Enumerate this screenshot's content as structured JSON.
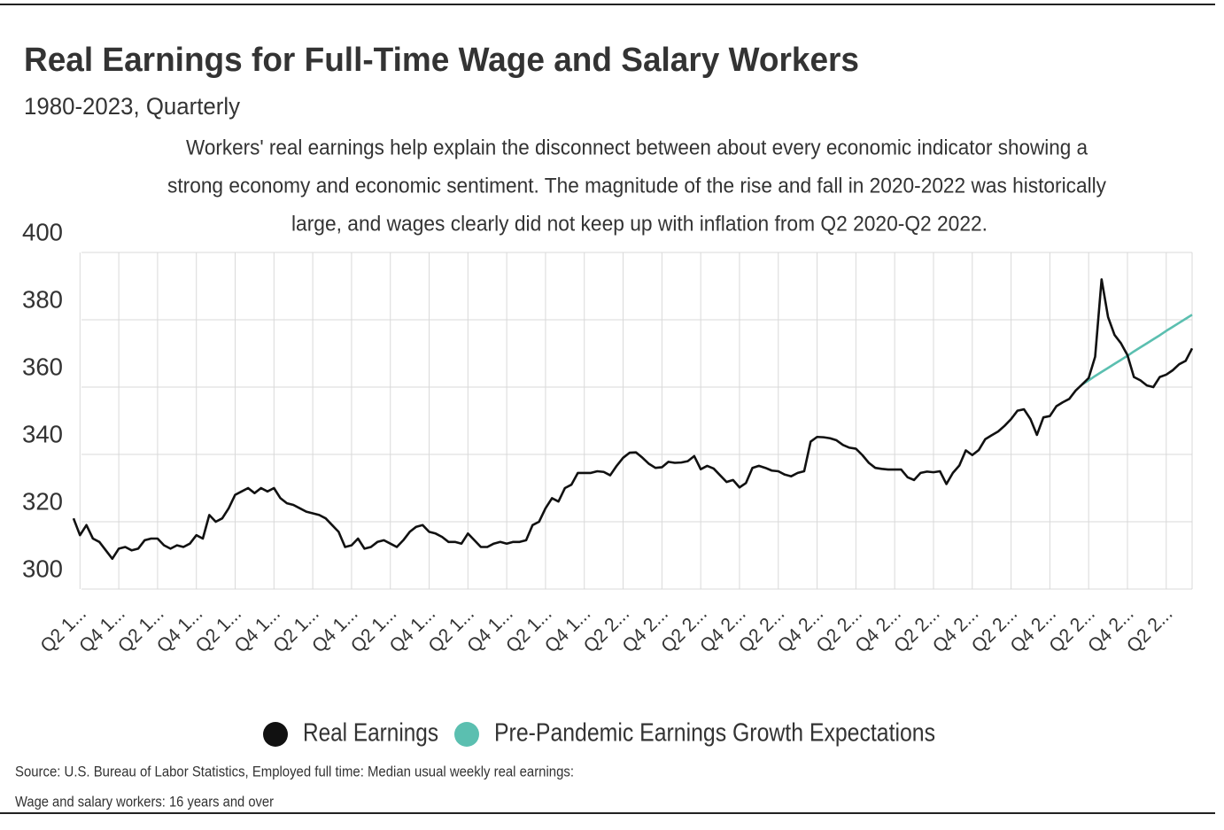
{
  "chart_data": {
    "type": "line",
    "title": "Real Earnings for Full-Time Wage and Salary Workers",
    "subtitle": "1980-2023, Quarterly",
    "annotation": [
      "Workers' real earnings help explain the disconnect between about every economic indicator showing a",
      "strong economy and economic sentiment. The magnitude of the rise and fall in 2020-2022 was historically",
      "large, and wages clearly did not keep up with inflation from Q2 2020-Q2 2022."
    ],
    "source": [
      "Source:  U.S. Bureau of Labor Statistics, Employed full time: Median usual weekly real earnings:",
      "Wage and salary workers: 16 years and over"
    ],
    "categories": [
      null,
      "Q2 1...",
      null,
      null,
      null,
      null,
      null,
      "Q4 1...",
      null,
      null,
      null,
      null,
      null,
      "Q2 1...",
      null,
      null,
      null,
      null,
      null,
      "Q4 1...",
      null,
      null,
      null,
      null,
      null,
      "Q2 1...",
      null,
      null,
      null,
      null,
      null,
      "Q4 1...",
      null,
      null,
      null,
      null,
      null,
      "Q2 1...",
      null,
      null,
      null,
      null,
      null,
      "Q4 1...",
      null,
      null,
      null,
      null,
      null,
      "Q2 1...",
      null,
      null,
      null,
      null,
      null,
      "Q4 1...",
      null,
      null,
      null,
      null,
      null,
      "Q2 1...",
      null,
      null,
      null,
      null,
      null,
      "Q4 1...",
      null,
      null,
      null,
      null,
      null,
      "Q2 1...",
      null,
      null,
      null,
      null,
      null,
      "Q4 1...",
      null,
      null,
      null,
      null,
      null,
      "Q2 2...",
      null,
      null,
      null,
      null,
      null,
      "Q4 2...",
      null,
      null,
      null,
      null,
      null,
      "Q2 2...",
      null,
      null,
      null,
      null,
      null,
      "Q4 2...",
      null,
      null,
      null,
      null,
      null,
      "Q2 2...",
      null,
      null,
      null,
      null,
      null,
      "Q4 2...",
      null,
      null,
      null,
      null,
      null,
      "Q2 2...",
      null,
      null,
      null,
      null,
      null,
      "Q4 2...",
      null,
      null,
      null,
      null,
      null,
      "Q2 2...",
      null,
      null,
      null,
      null,
      null,
      "Q4 2...",
      null,
      null,
      null,
      null,
      null,
      "Q2 2...",
      null,
      null,
      null,
      null,
      null,
      "Q4 2...",
      null,
      null,
      null,
      null,
      null,
      "Q2 2...",
      null,
      null,
      null,
      null,
      null,
      "Q4 2...",
      null,
      null,
      null,
      null,
      null,
      "Q2 2...",
      null,
      null,
      null,
      null
    ],
    "series": [
      {
        "name": "Real Earnings",
        "color": "#111111",
        "values": [
          321,
          316,
          319,
          315,
          314,
          311.5,
          309,
          312,
          312.5,
          311.5,
          312,
          314.5,
          315,
          315,
          313,
          312,
          313,
          312.5,
          313.5,
          316,
          315,
          322,
          320,
          321,
          324,
          328,
          329,
          330,
          328.5,
          330,
          329,
          330,
          327,
          325.5,
          325,
          324,
          323,
          322.5,
          322,
          321,
          319,
          317,
          312.5,
          313,
          315,
          312,
          312.5,
          314,
          314.5,
          313.5,
          312.5,
          314.5,
          317,
          318.5,
          319,
          317,
          316.5,
          315.5,
          314,
          314,
          313.5,
          316.5,
          314.5,
          312.5,
          312.5,
          313.5,
          314,
          313.5,
          314,
          314,
          314.5,
          319,
          320,
          324,
          327,
          326,
          330,
          331,
          334.5,
          334.5,
          334.5,
          335,
          334.8,
          333.8,
          336.6,
          339,
          340.5,
          340.6,
          339,
          337.2,
          336,
          336.2,
          337.8,
          337.5,
          337.6,
          338,
          339.5,
          335.6,
          336.6,
          335.8,
          333.8,
          331.8,
          332.4,
          330.2,
          331.5,
          336,
          336.6,
          336,
          335.2,
          335,
          334,
          333.5,
          334.5,
          335,
          343.8,
          345.2,
          345.1,
          344.8,
          344.2,
          342.8,
          342,
          341.7,
          339.8,
          337.5,
          336,
          335.7,
          335.5,
          335.5,
          335.5,
          333.2,
          332.4,
          334.5,
          334.9,
          334.7,
          335,
          331.2,
          334.5,
          336.7,
          341.2,
          339.8,
          341.3,
          344.5,
          345.7,
          346.8,
          348.5,
          350.5,
          353,
          353.4,
          350.5,
          345.8,
          351,
          351.4,
          354.3,
          355.5,
          356.5,
          359,
          360.8,
          362.7,
          369,
          392,
          380.8,
          375.5,
          373,
          369.5,
          363,
          362,
          360.5,
          360,
          363,
          363.7,
          365,
          366.8,
          367.8,
          371.5
        ]
      },
      {
        "name": "Pre-Pandemic Earnings Growth Expectations",
        "color": "#5bbfb0",
        "values": [
          null,
          null,
          null,
          null,
          null,
          null,
          null,
          null,
          null,
          null,
          null,
          null,
          null,
          null,
          null,
          null,
          null,
          null,
          null,
          null,
          null,
          null,
          null,
          null,
          null,
          null,
          null,
          null,
          null,
          null,
          null,
          null,
          null,
          null,
          null,
          null,
          null,
          null,
          null,
          null,
          null,
          null,
          null,
          null,
          null,
          null,
          null,
          null,
          null,
          null,
          null,
          null,
          null,
          null,
          null,
          null,
          null,
          null,
          null,
          null,
          null,
          null,
          null,
          null,
          null,
          null,
          null,
          null,
          null,
          null,
          null,
          null,
          null,
          null,
          null,
          null,
          null,
          null,
          null,
          null,
          null,
          null,
          null,
          null,
          null,
          null,
          null,
          null,
          null,
          null,
          null,
          null,
          null,
          null,
          null,
          null,
          null,
          null,
          null,
          null,
          null,
          null,
          null,
          null,
          null,
          null,
          null,
          null,
          null,
          null,
          null,
          null,
          null,
          null,
          null,
          null,
          null,
          null,
          null,
          null,
          null,
          null,
          null,
          null,
          null,
          null,
          null,
          null,
          null,
          null,
          null,
          null,
          null,
          null,
          null,
          null,
          null,
          null,
          null,
          null,
          null,
          null,
          null,
          null,
          null,
          null,
          null,
          null,
          null,
          null,
          null,
          null,
          null,
          null,
          null,
          null,
          360.8,
          362,
          363.3,
          364.5,
          365.7,
          366.9,
          368.1,
          369.3,
          370.6,
          371.8,
          373,
          374.2,
          375.4,
          376.7,
          377.9,
          379.1,
          380.3,
          381.5
        ]
      }
    ],
    "ylim": [
      300,
      400
    ],
    "yticks": [
      300,
      320,
      340,
      360,
      380,
      400
    ],
    "grid": true,
    "legend": "bottom"
  }
}
